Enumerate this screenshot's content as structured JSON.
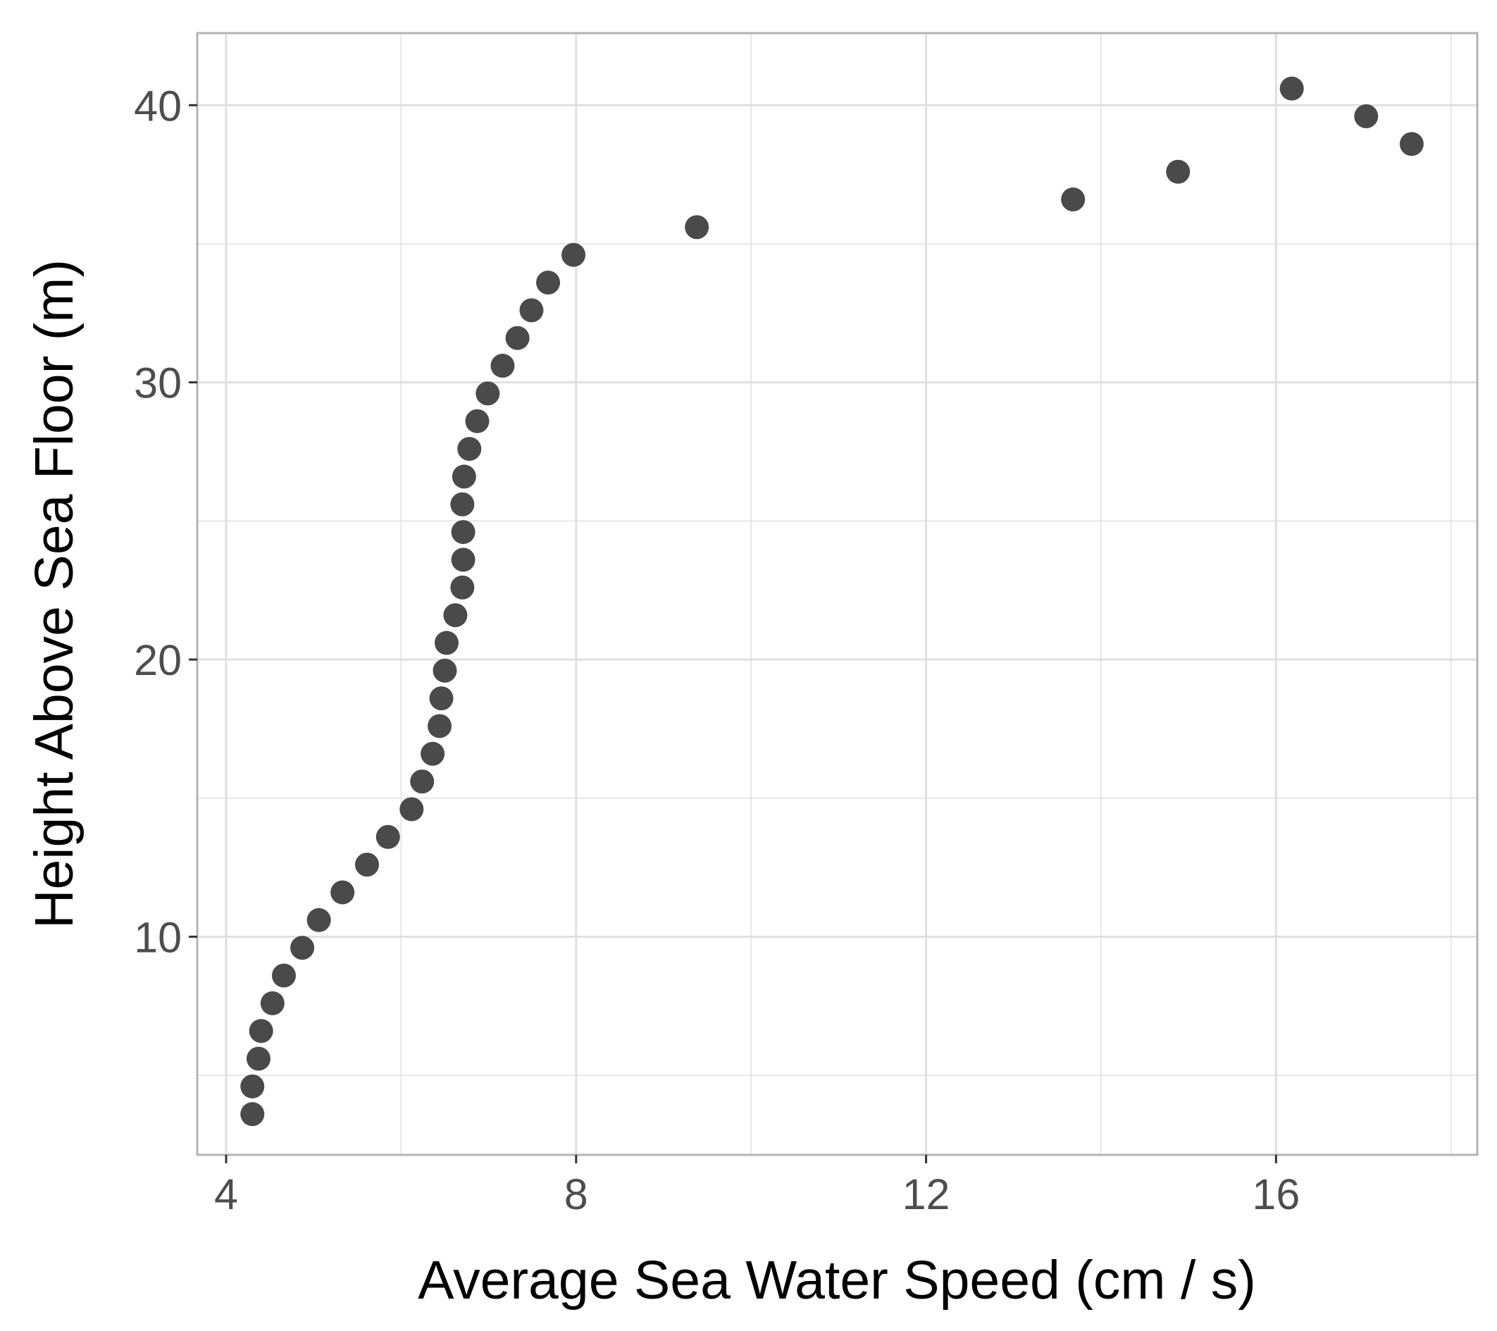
{
  "chart_data": {
    "type": "scatter",
    "title": "",
    "xlabel": "Average Sea Water Speed (cm / s)",
    "ylabel": "Height Above Sea Floor (m)",
    "xlim": [
      3.67,
      18.3
    ],
    "ylim": [
      2.13,
      42.6
    ],
    "x_ticks": [
      4,
      8,
      12,
      16
    ],
    "y_ticks": [
      10,
      20,
      30,
      40
    ],
    "x_tick_labels": [
      "4",
      "8",
      "12",
      "16"
    ],
    "y_tick_labels": [
      "10",
      "20",
      "30",
      "40"
    ],
    "x_minor_breaks": [
      6,
      10,
      14,
      18
    ],
    "y_minor_breaks": [
      5,
      15,
      25,
      35
    ],
    "grid": true,
    "colors": {
      "point": "#4a4a4a",
      "grid": "#e0e0e0",
      "border": "#b3b3b3",
      "background": "#ffffff"
    },
    "x": [
      4.3,
      4.3,
      4.37,
      4.4,
      4.53,
      4.66,
      4.87,
      5.06,
      5.33,
      5.61,
      5.85,
      6.12,
      6.24,
      6.36,
      6.44,
      6.46,
      6.5,
      6.52,
      6.62,
      6.7,
      6.71,
      6.71,
      6.7,
      6.72,
      6.78,
      6.87,
      6.99,
      7.16,
      7.33,
      7.49,
      7.68,
      7.97,
      9.38,
      13.68,
      14.88,
      16.18,
      17.03,
      17.55
    ],
    "y": [
      3.6,
      4.6,
      5.6,
      6.6,
      7.6,
      8.6,
      9.6,
      10.6,
      11.6,
      12.6,
      13.6,
      14.6,
      15.6,
      16.6,
      17.6,
      18.6,
      19.6,
      20.6,
      21.6,
      22.6,
      23.6,
      24.6,
      25.6,
      26.6,
      27.6,
      28.6,
      29.6,
      30.6,
      31.6,
      32.6,
      33.6,
      34.6,
      35.6,
      36.6,
      37.6,
      40.6,
      39.6,
      38.6
    ]
  }
}
